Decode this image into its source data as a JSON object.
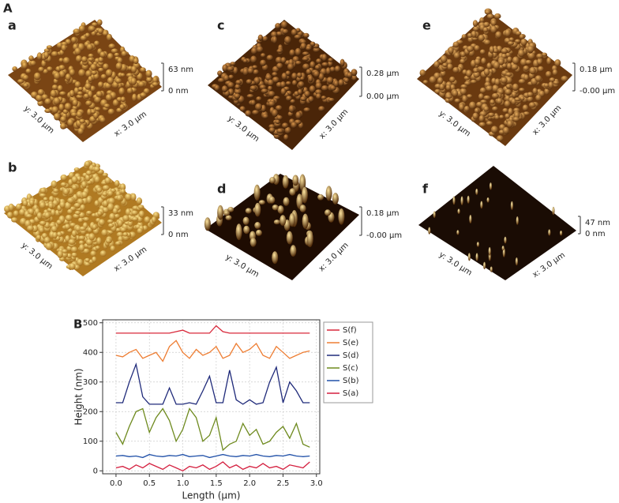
{
  "figure": {
    "label_a": "A",
    "label_b": "B"
  },
  "panels": [
    {
      "label": "a",
      "y_axis": "y: 3.0 µm",
      "x_axis": "x: 3.0 µm",
      "scale_top": "63 nm",
      "scale_bottom": "0 nm"
    },
    {
      "label": "b",
      "y_axis": "y: 3.0 µm",
      "x_axis": "x: 3.0 µm",
      "scale_top": "33 nm",
      "scale_bottom": "0 nm"
    },
    {
      "label": "c",
      "y_axis": "y: 3.0 µm",
      "x_axis": "x: 3.0 µm",
      "scale_top": "0.28 µm",
      "scale_bottom": "0.00 µm"
    },
    {
      "label": "d",
      "y_axis": "y: 3.0 µm",
      "x_axis": "x: 3.0 µm",
      "scale_top": "0.18 µm",
      "scale_bottom": "-0.00 µm"
    },
    {
      "label": "e",
      "y_axis": "y: 3.0 µm",
      "x_axis": "x: 3.0 µm",
      "scale_top": "0.18 µm",
      "scale_bottom": "-0.00 µm"
    },
    {
      "label": "f",
      "y_axis": "y: 3.0 µm",
      "x_axis": "x: 3.0 µm",
      "scale_top": "47 nm",
      "scale_bottom": "0 nm"
    }
  ],
  "chart_data": {
    "type": "line",
    "xlabel": "Length (µm)",
    "ylabel": "Height (nm)",
    "x": [
      0,
      0.1,
      0.2,
      0.3,
      0.4,
      0.5,
      0.6,
      0.7,
      0.8,
      0.9,
      1.0,
      1.1,
      1.2,
      1.3,
      1.4,
      1.5,
      1.6,
      1.7,
      1.8,
      1.9,
      2.0,
      2.1,
      2.2,
      2.3,
      2.4,
      2.5,
      2.6,
      2.7,
      2.8,
      2.9
    ],
    "xlim": [
      -0.2,
      3.05
    ],
    "ylim": [
      -10,
      510
    ],
    "xticks": [
      {
        "value": 0,
        "label": "0.0"
      },
      0.5,
      {
        "value": 1,
        "label": "1.0"
      },
      1.5,
      {
        "value": 2,
        "label": "2.0"
      },
      2.5,
      {
        "value": 3,
        "label": "3.0"
      }
    ],
    "yticks": [
      0,
      100,
      200,
      300,
      400,
      500
    ],
    "grid": true,
    "legend": "right",
    "series": [
      {
        "name": "S(f)",
        "color": "#d8283a",
        "values": [
          465,
          465,
          465,
          465,
          465,
          465,
          465,
          465,
          465,
          470,
          475,
          465,
          465,
          465,
          465,
          490,
          470,
          465,
          465,
          465,
          465,
          465,
          465,
          465,
          465,
          465,
          465,
          465,
          465,
          465
        ]
      },
      {
        "name": "S(e)",
        "color": "#ee7d32",
        "values": [
          390,
          385,
          400,
          410,
          380,
          390,
          400,
          370,
          420,
          440,
          400,
          380,
          410,
          390,
          400,
          420,
          380,
          390,
          430,
          400,
          410,
          430,
          390,
          380,
          420,
          400,
          380,
          390,
          400,
          405
        ]
      },
      {
        "name": "S(d)",
        "color": "#1f2a7a",
        "values": [
          230,
          230,
          300,
          360,
          250,
          225,
          225,
          225,
          280,
          225,
          225,
          230,
          225,
          270,
          320,
          230,
          230,
          340,
          240,
          225,
          240,
          225,
          230,
          300,
          350,
          230,
          300,
          270,
          230,
          230
        ]
      },
      {
        "name": "S(c)",
        "color": "#6e8a1e",
        "values": [
          130,
          90,
          150,
          200,
          210,
          130,
          180,
          210,
          170,
          100,
          140,
          210,
          180,
          100,
          120,
          180,
          70,
          90,
          100,
          160,
          120,
          140,
          90,
          100,
          130,
          150,
          110,
          160,
          90,
          80
        ]
      },
      {
        "name": "S(b)",
        "color": "#2050a8",
        "values": [
          50,
          52,
          48,
          50,
          45,
          55,
          50,
          48,
          52,
          50,
          55,
          48,
          50,
          52,
          45,
          50,
          55,
          50,
          48,
          52,
          50,
          55,
          50,
          48,
          52,
          50,
          55,
          50,
          48,
          50
        ]
      },
      {
        "name": "S(a)",
        "color": "#d41f3f",
        "values": [
          10,
          15,
          5,
          20,
          10,
          25,
          15,
          5,
          20,
          10,
          0,
          15,
          10,
          20,
          5,
          15,
          30,
          10,
          20,
          5,
          15,
          10,
          25,
          10,
          15,
          5,
          20,
          15,
          10,
          30
        ]
      }
    ]
  }
}
